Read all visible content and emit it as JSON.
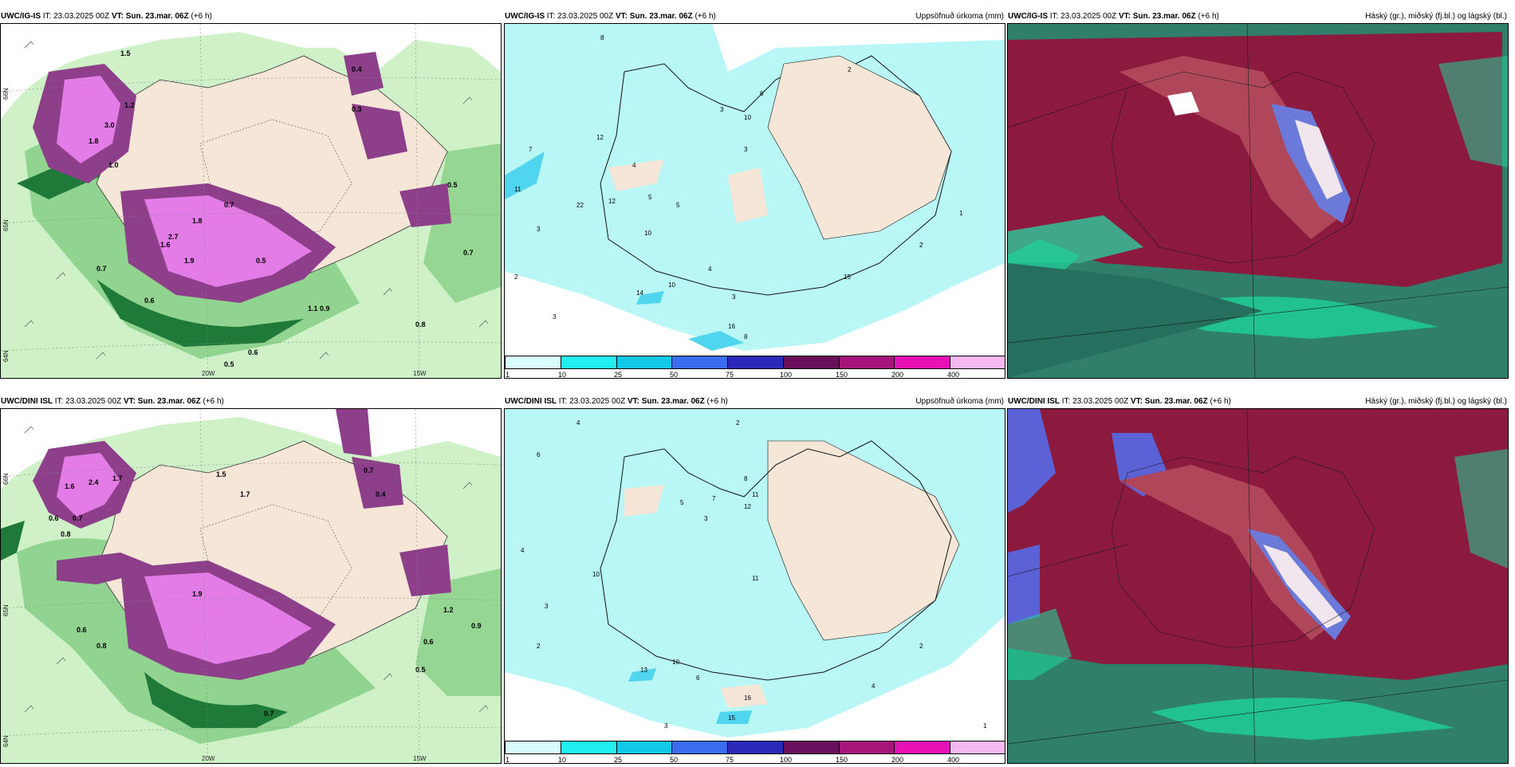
{
  "colors": {
    "land_dry": "#f5e6d8",
    "ocean": "#ffffff",
    "precip_green_light": "#c9efc2",
    "precip_green_mid": "#86cf85",
    "precip_green_dark": "#1f7a3a",
    "precip_purple": "#8d3f8a",
    "precip_magenta": "#e37ce6",
    "accum_cyan": "#b9f6f6",
    "cloud_maroon": "#8c1a3e",
    "cloud_teal": "#2f8f72",
    "cloud_green": "#1fd39a",
    "cloud_blue": "#5a62d6"
  },
  "rows": [
    {
      "model": "UWC/IG-IS",
      "it_label": "IT:",
      "it_value": "23.03.2025 00Z",
      "vt_label": "VT:",
      "vt_value": "Sun. 23.mar. 06Z",
      "lead": "(+6 h)"
    },
    {
      "model": "UWC/DINI ISL",
      "it_label": "IT:",
      "it_value": "23.03.2025 00Z",
      "vt_label": "VT:",
      "vt_value": "Sun. 23.mar. 06Z",
      "lead": "(+6 h)"
    }
  ],
  "panel_titles": {
    "precip": "",
    "accum": "Uppsöfnuð úrkoma (mm)",
    "cloud": "Háský (gr.), miðský (fj.bl.) og lágský (bl.)"
  },
  "axes": {
    "lat_66": "66N",
    "lat_65": "65N",
    "lat_64": "64N",
    "lon_20": "20W",
    "lon_15": "15W"
  },
  "colorbar": {
    "ticks": [
      "1",
      "10",
      "25",
      "50",
      "75",
      "100",
      "150",
      "200",
      "400"
    ],
    "colors": [
      "#d8fbfb",
      "#22f0f0",
      "#12c8e8",
      "#3a6cf0",
      "#2a2ab8",
      "#6a0f5a",
      "#a8157a",
      "#e812b4",
      "#f5b8f0"
    ]
  },
  "precip_labels_top": [
    "1.5",
    "1.2",
    "3.0",
    "1.8",
    "1.0",
    "1.6",
    "1.8",
    "2.7",
    "1.9",
    "0.7",
    "0.5",
    "0.9",
    "0.3",
    "0.4",
    "0.6",
    "0.8",
    "0.7",
    "1.1",
    "0.5",
    "0.6",
    "0.7",
    "0.5"
  ],
  "precip_labels_bottom": [
    "1.6",
    "2.4",
    "1.7",
    "0.6",
    "0.7",
    "0.8",
    "1.9",
    "1.5",
    "1.7",
    "0.7",
    "0.4",
    "1.2",
    "0.9",
    "0.6",
    "0.5",
    "0.7",
    "0.8",
    "0.6"
  ],
  "accum_labels_top": [
    "8",
    "2",
    "6",
    "3",
    "10",
    "12",
    "5",
    "4",
    "3",
    "7",
    "11",
    "22",
    "12",
    "5",
    "10",
    "3",
    "2",
    "14",
    "10",
    "4",
    "3",
    "16",
    "15",
    "3",
    "2",
    "1",
    "8"
  ],
  "accum_labels_bottom": [
    "4",
    "2",
    "6",
    "8",
    "11",
    "12",
    "7",
    "5",
    "3",
    "10",
    "11",
    "3",
    "4",
    "2",
    "13",
    "10",
    "6",
    "15",
    "16",
    "4",
    "2",
    "1",
    "3"
  ]
}
